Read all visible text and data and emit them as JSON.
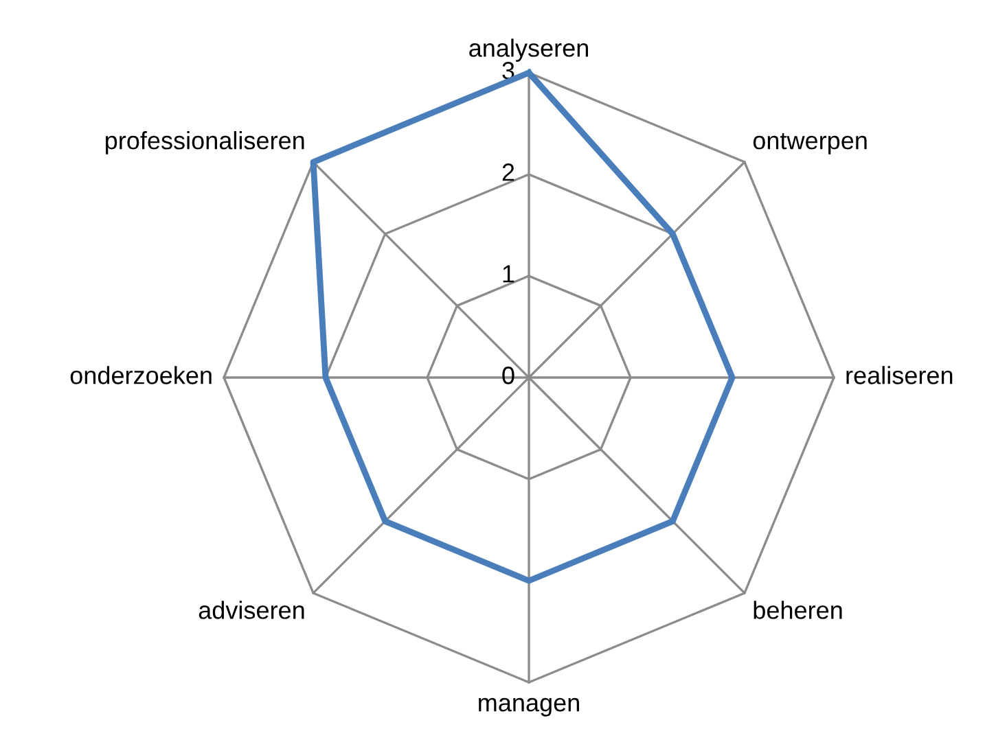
{
  "chart_data": {
    "type": "radar",
    "categories": [
      "analyseren",
      "ontwerpen",
      "realiseren",
      "beheren",
      "managen",
      "adviseren",
      "onderzoeken",
      "professionaliseren"
    ],
    "series": [
      {
        "color": "#4a7ebb",
        "values": [
          3,
          2,
          2,
          2,
          2,
          2,
          2,
          3
        ]
      }
    ],
    "ylim": [
      0,
      3
    ],
    "yticks": [
      0,
      1,
      2,
      3
    ],
    "grid": true
  }
}
